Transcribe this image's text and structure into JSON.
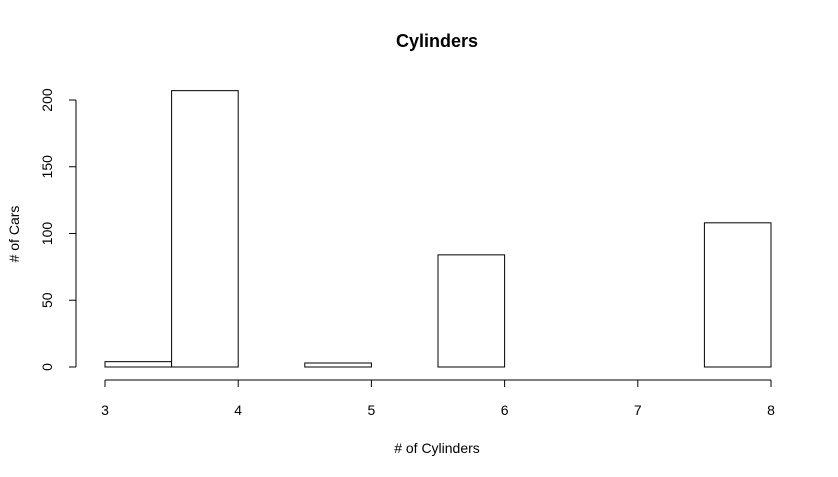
{
  "chart_data": {
    "type": "bar",
    "subtype": "histogram",
    "title": "Cylinders",
    "xlabel": "# of Cylinders",
    "ylabel": "# of Cars",
    "bins": [
      {
        "start": 3.0,
        "end": 3.5,
        "value": 4
      },
      {
        "start": 3.5,
        "end": 4.0,
        "value": 207
      },
      {
        "start": 4.0,
        "end": 4.5,
        "value": 0
      },
      {
        "start": 4.5,
        "end": 5.0,
        "value": 3
      },
      {
        "start": 5.0,
        "end": 5.5,
        "value": 0
      },
      {
        "start": 5.5,
        "end": 6.0,
        "value": 84
      },
      {
        "start": 6.0,
        "end": 6.5,
        "value": 0
      },
      {
        "start": 6.5,
        "end": 7.0,
        "value": 0
      },
      {
        "start": 7.0,
        "end": 7.5,
        "value": 0
      },
      {
        "start": 7.5,
        "end": 8.0,
        "value": 108
      }
    ],
    "xticks": [
      3,
      4,
      5,
      6,
      7,
      8
    ],
    "yticks": [
      0,
      50,
      100,
      150,
      200
    ],
    "xlim": [
      3,
      8
    ],
    "ylim": [
      0,
      200
    ],
    "grid": false,
    "bar_fill": "#ffffff",
    "bar_stroke": "#000000"
  }
}
